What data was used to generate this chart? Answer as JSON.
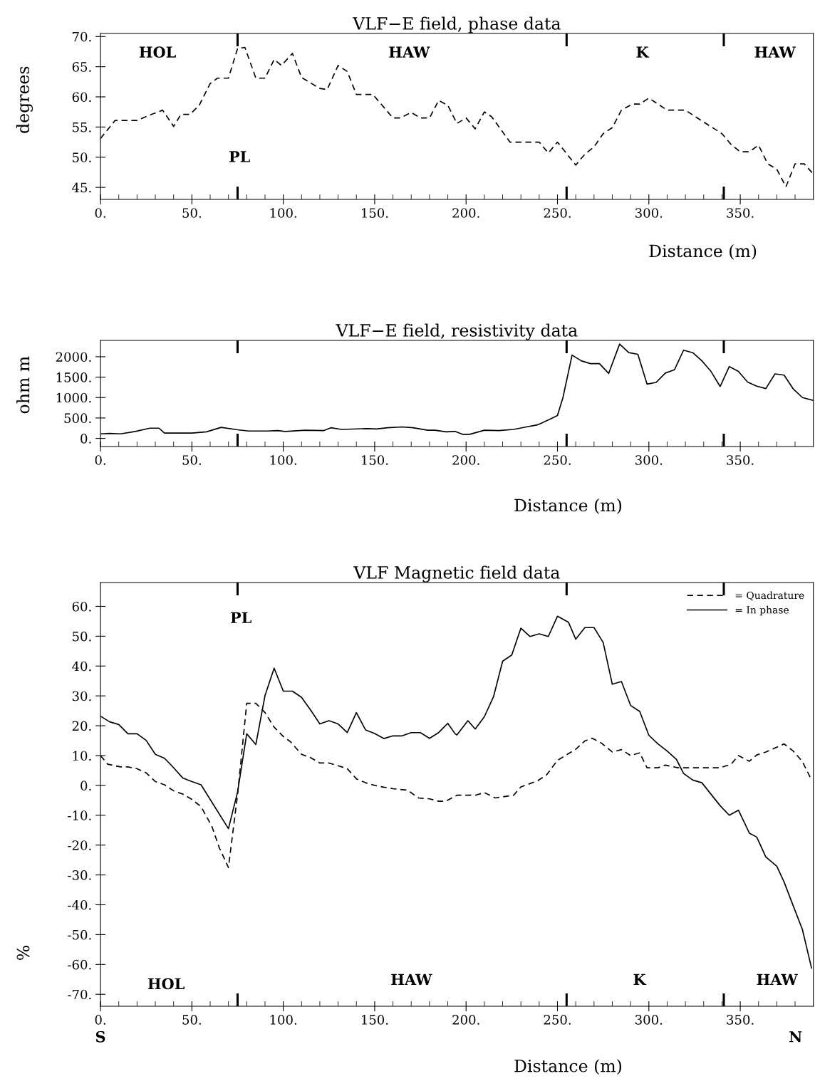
{
  "chart_data": [
    {
      "type": "line",
      "title": "VLF−E field, phase data",
      "xlabel": "Distance (m)",
      "ylabel": "degrees",
      "xlim": [
        0,
        390
      ],
      "ylim": [
        43,
        70.5
      ],
      "xticks": [
        {
          "value": 0,
          "label": "0."
        },
        {
          "value": 10,
          "label": null
        },
        {
          "value": 20,
          "label": null
        },
        {
          "value": 30,
          "label": null
        },
        {
          "value": 40,
          "label": null
        },
        {
          "value": 50,
          "label": "50."
        },
        {
          "value": 60,
          "label": null
        },
        {
          "value": 70,
          "label": null
        },
        {
          "value": 80,
          "label": null
        },
        {
          "value": 90,
          "label": null
        },
        {
          "value": 100,
          "label": "100."
        },
        {
          "value": 110,
          "label": null
        },
        {
          "value": 120,
          "label": null
        },
        {
          "value": 130,
          "label": null
        },
        {
          "value": 140,
          "label": null
        },
        {
          "value": 150,
          "label": "150."
        },
        {
          "value": 160,
          "label": null
        },
        {
          "value": 170,
          "label": null
        },
        {
          "value": 180,
          "label": null
        },
        {
          "value": 190,
          "label": null
        },
        {
          "value": 200,
          "label": "200."
        },
        {
          "value": 210,
          "label": null
        },
        {
          "value": 220,
          "label": null
        },
        {
          "value": 230,
          "label": null
        },
        {
          "value": 240,
          "label": null
        },
        {
          "value": 250,
          "label": "250."
        },
        {
          "value": 260,
          "label": null
        },
        {
          "value": 270,
          "label": null
        },
        {
          "value": 280,
          "label": null
        },
        {
          "value": 290,
          "label": null
        },
        {
          "value": 300,
          "label": "300."
        },
        {
          "value": 310,
          "label": null
        },
        {
          "value": 320,
          "label": null
        },
        {
          "value": 330,
          "label": null
        },
        {
          "value": 340,
          "label": null
        },
        {
          "value": 350,
          "label": "350."
        },
        {
          "value": 360,
          "label": null
        },
        {
          "value": 370,
          "label": null
        },
        {
          "value": 380,
          "label": null
        }
      ],
      "yticks": [
        {
          "value": 45,
          "label": "45."
        },
        {
          "value": 50,
          "label": "50."
        },
        {
          "value": 55,
          "label": "55."
        },
        {
          "value": 60,
          "label": "60."
        },
        {
          "value": 65,
          "label": "65."
        },
        {
          "value": 70,
          "label": "70."
        }
      ],
      "line_style": "dashed",
      "marker": "none",
      "grid": false,
      "legend": false,
      "ref_lines": [
        {
          "axis": "x",
          "value": 75,
          "color": "#000000"
        },
        {
          "axis": "x",
          "value": 255,
          "color": "#000000"
        },
        {
          "axis": "x",
          "value": 341,
          "color": "#000000"
        }
      ],
      "annotations": [
        "HOL",
        "HAW",
        "K",
        "HAW",
        "PL"
      ],
      "series": [
        {
          "color": "#000000",
          "x": [
            0,
            8,
            20,
            28,
            34,
            40,
            44,
            49,
            54,
            60,
            64,
            70,
            75,
            79,
            85,
            90,
            95,
            99,
            105,
            110,
            120,
            124,
            130,
            135,
            140,
            149,
            160,
            164,
            170,
            175,
            180,
            185,
            190,
            195,
            200,
            205,
            210,
            214,
            224,
            240,
            245,
            250,
            260,
            265,
            270,
            275,
            280,
            285,
            291,
            295,
            300,
            305,
            310,
            320,
            326,
            340,
            345,
            350,
            355,
            360,
            365,
            370,
            375,
            380,
            385,
            390
          ],
          "values": [
            53.1,
            56.1,
            56.1,
            57.1,
            57.8,
            55.1,
            57.1,
            57.1,
            58.6,
            62.2,
            63.1,
            63.1,
            68.0,
            68.2,
            63.1,
            63.1,
            66.2,
            65.2,
            67.2,
            63.2,
            61.4,
            61.2,
            65.2,
            64.2,
            60.4,
            60.4,
            56.5,
            56.5,
            57.4,
            56.5,
            56.5,
            59.4,
            58.6,
            55.6,
            56.5,
            54.7,
            57.5,
            56.7,
            52.5,
            52.5,
            50.7,
            52.5,
            48.7,
            50.5,
            51.7,
            53.9,
            54.9,
            57.8,
            58.8,
            58.8,
            59.8,
            58.8,
            57.8,
            57.8,
            56.6,
            53.9,
            52.1,
            50.9,
            50.9,
            52.0,
            48.9,
            48.0,
            45.1,
            48.9,
            48.9,
            47.2
          ]
        }
      ]
    },
    {
      "type": "line",
      "title": "VLF−E field, resistivity data",
      "xlabel": "Distance (m)",
      "ylabel": "ohm m",
      "xlim": [
        0,
        390
      ],
      "ylim": [
        -200,
        2400
      ],
      "xticks": [
        {
          "value": 0,
          "label": "0."
        },
        {
          "value": 10,
          "label": null
        },
        {
          "value": 20,
          "label": null
        },
        {
          "value": 30,
          "label": null
        },
        {
          "value": 40,
          "label": null
        },
        {
          "value": 50,
          "label": "50."
        },
        {
          "value": 60,
          "label": null
        },
        {
          "value": 70,
          "label": null
        },
        {
          "value": 80,
          "label": null
        },
        {
          "value": 90,
          "label": null
        },
        {
          "value": 100,
          "label": "100."
        },
        {
          "value": 110,
          "label": null
        },
        {
          "value": 120,
          "label": null
        },
        {
          "value": 130,
          "label": null
        },
        {
          "value": 140,
          "label": null
        },
        {
          "value": 150,
          "label": "150."
        },
        {
          "value": 160,
          "label": null
        },
        {
          "value": 170,
          "label": null
        },
        {
          "value": 180,
          "label": null
        },
        {
          "value": 190,
          "label": null
        },
        {
          "value": 200,
          "label": "200."
        },
        {
          "value": 210,
          "label": null
        },
        {
          "value": 220,
          "label": null
        },
        {
          "value": 230,
          "label": null
        },
        {
          "value": 240,
          "label": null
        },
        {
          "value": 250,
          "label": "250."
        },
        {
          "value": 260,
          "label": null
        },
        {
          "value": 270,
          "label": null
        },
        {
          "value": 280,
          "label": null
        },
        {
          "value": 290,
          "label": null
        },
        {
          "value": 300,
          "label": "300."
        },
        {
          "value": 310,
          "label": null
        },
        {
          "value": 320,
          "label": null
        },
        {
          "value": 330,
          "label": null
        },
        {
          "value": 340,
          "label": null
        },
        {
          "value": 350,
          "label": "350."
        },
        {
          "value": 360,
          "label": null
        },
        {
          "value": 370,
          "label": null
        },
        {
          "value": 380,
          "label": null
        }
      ],
      "yticks": [
        {
          "value": 0,
          "label": "0."
        },
        {
          "value": 500,
          "label": "500."
        },
        {
          "value": 1000,
          "label": "1000."
        },
        {
          "value": 1500,
          "label": "1500."
        },
        {
          "value": 2000,
          "label": "2000."
        }
      ],
      "line_style": "solid",
      "marker": "none",
      "grid": false,
      "legend": false,
      "ref_lines": [
        {
          "axis": "x",
          "value": 75,
          "color": "#000000"
        },
        {
          "axis": "x",
          "value": 255,
          "color": "#000000"
        },
        {
          "axis": "x",
          "value": 341,
          "color": "#000000"
        }
      ],
      "series": [
        {
          "color": "#000000",
          "x": [
            0,
            5,
            11,
            19,
            27,
            32,
            35,
            50,
            58,
            66,
            75,
            81,
            91,
            97,
            101,
            112,
            122,
            126,
            132,
            146,
            151,
            157,
            165,
            171,
            179,
            183,
            189,
            194,
            198,
            202,
            210,
            218,
            226,
            233,
            239,
            245,
            250,
            253,
            258,
            263,
            268,
            273,
            278,
            284,
            289,
            294,
            299,
            304,
            309,
            314,
            319,
            324,
            329,
            334,
            339,
            344,
            349,
            354,
            359,
            364,
            369,
            374,
            379,
            384,
            390
          ],
          "values": [
            110,
            120,
            110,
            170,
            250,
            250,
            130,
            130,
            160,
            270,
            210,
            180,
            180,
            190,
            170,
            200,
            190,
            260,
            220,
            240,
            230,
            260,
            280,
            260,
            200,
            200,
            160,
            170,
            100,
            100,
            200,
            190,
            220,
            280,
            330,
            450,
            560,
            1000,
            2040,
            1900,
            1830,
            1830,
            1590,
            2310,
            2100,
            2060,
            1330,
            1370,
            1600,
            1680,
            2160,
            2100,
            1900,
            1640,
            1270,
            1760,
            1640,
            1380,
            1280,
            1220,
            1580,
            1550,
            1210,
            1000,
            930
          ]
        }
      ]
    },
    {
      "type": "line",
      "title": "VLF Magnetic field data",
      "xlabel": "Distance (m)",
      "ylabel": "%",
      "xlim": [
        0,
        390
      ],
      "ylim": [
        -74,
        68
      ],
      "xticks": [
        {
          "value": 0,
          "label": "0."
        },
        {
          "value": 10,
          "label": null
        },
        {
          "value": 20,
          "label": null
        },
        {
          "value": 30,
          "label": null
        },
        {
          "value": 40,
          "label": null
        },
        {
          "value": 50,
          "label": "50."
        },
        {
          "value": 60,
          "label": null
        },
        {
          "value": 70,
          "label": null
        },
        {
          "value": 80,
          "label": null
        },
        {
          "value": 90,
          "label": null
        },
        {
          "value": 100,
          "label": "100."
        },
        {
          "value": 110,
          "label": null
        },
        {
          "value": 120,
          "label": null
        },
        {
          "value": 130,
          "label": null
        },
        {
          "value": 140,
          "label": null
        },
        {
          "value": 150,
          "label": "150."
        },
        {
          "value": 160,
          "label": null
        },
        {
          "value": 170,
          "label": null
        },
        {
          "value": 180,
          "label": null
        },
        {
          "value": 190,
          "label": null
        },
        {
          "value": 200,
          "label": "200."
        },
        {
          "value": 210,
          "label": null
        },
        {
          "value": 220,
          "label": null
        },
        {
          "value": 230,
          "label": null
        },
        {
          "value": 240,
          "label": null
        },
        {
          "value": 250,
          "label": "250."
        },
        {
          "value": 260,
          "label": null
        },
        {
          "value": 270,
          "label": null
        },
        {
          "value": 280,
          "label": null
        },
        {
          "value": 290,
          "label": null
        },
        {
          "value": 300,
          "label": "300."
        },
        {
          "value": 310,
          "label": null
        },
        {
          "value": 320,
          "label": null
        },
        {
          "value": 330,
          "label": null
        },
        {
          "value": 340,
          "label": null
        },
        {
          "value": 350,
          "label": "350."
        },
        {
          "value": 360,
          "label": null
        },
        {
          "value": 370,
          "label": null
        },
        {
          "value": 380,
          "label": null
        }
      ],
      "yticks": [
        {
          "value": -70,
          "label": "-70."
        },
        {
          "value": -60,
          "label": "-60."
        },
        {
          "value": -50,
          "label": "-50."
        },
        {
          "value": -40,
          "label": "-40."
        },
        {
          "value": -30,
          "label": "-30."
        },
        {
          "value": -20,
          "label": "-20."
        },
        {
          "value": -10,
          "label": "-10."
        },
        {
          "value": 0,
          "label": "0."
        },
        {
          "value": 10,
          "label": "10."
        },
        {
          "value": 20,
          "label": "20."
        },
        {
          "value": 30,
          "label": "30."
        },
        {
          "value": 40,
          "label": "40."
        },
        {
          "value": 50,
          "label": "50."
        },
        {
          "value": 60,
          "label": "60."
        }
      ],
      "marker": "none",
      "grid": false,
      "legend": "top right",
      "ref_lines": [
        {
          "axis": "x",
          "value": 75,
          "color": "#000000"
        },
        {
          "axis": "x",
          "value": 255,
          "color": "#000000"
        },
        {
          "axis": "x",
          "value": 341,
          "color": "#000000"
        }
      ],
      "annotations": [
        "PL",
        "HOL",
        "HAW",
        "K",
        "HAW",
        "S",
        "N"
      ],
      "series": [
        {
          "name": "= Quadrature",
          "color": "#000000",
          "line_style": "dashed",
          "x": [
            0,
            4,
            11,
            15,
            20,
            25,
            30,
            35,
            40,
            45,
            50,
            55,
            61,
            65,
            70,
            75,
            80,
            85,
            90,
            95,
            100,
            104,
            110,
            115,
            120,
            125,
            130,
            135,
            140,
            145,
            150,
            155,
            160,
            168,
            174,
            180,
            185,
            189,
            194,
            195,
            205,
            210,
            216,
            226,
            230,
            239,
            244,
            250,
            260,
            265,
            269,
            274,
            280,
            285,
            290,
            295,
            299,
            305,
            309,
            316,
            339,
            345,
            349,
            355,
            359,
            364,
            370,
            374,
            379,
            384,
            389
          ],
          "values": [
            10.0,
            7.1,
            6.2,
            6.2,
            5.6,
            4.2,
            1.3,
            0.2,
            -1.8,
            -2.9,
            -4.7,
            -7.1,
            -13.8,
            -20.9,
            -27.5,
            -3.1,
            27.5,
            27.5,
            24.4,
            19.5,
            16.4,
            14.6,
            10.4,
            9.3,
            7.5,
            7.5,
            6.6,
            5.6,
            2.2,
            0.9,
            0.0,
            -0.6,
            -1.1,
            -1.6,
            -4.2,
            -4.5,
            -5.3,
            -5.3,
            -3.6,
            -3.3,
            -3.3,
            -2.4,
            -4.2,
            -3.3,
            -0.5,
            1.5,
            3.5,
            8.4,
            12.1,
            14.9,
            15.8,
            14.2,
            11.2,
            12.0,
            10.0,
            10.9,
            5.9,
            5.9,
            6.8,
            5.9,
            5.9,
            7.1,
            10.0,
            8.1,
            10.2,
            11.2,
            12.8,
            13.9,
            11.5,
            8.0,
            1.8
          ]
        },
        {
          "name": "= In phase",
          "color": "#000000",
          "line_style": "solid",
          "x": [
            0,
            5,
            10,
            15,
            20,
            25,
            30,
            35,
            39,
            45,
            50,
            55,
            70,
            75,
            80,
            85,
            90,
            95,
            100,
            105,
            110,
            115,
            120,
            125,
            130,
            135,
            140,
            145,
            150,
            155,
            160,
            165,
            170,
            175,
            180,
            185,
            190,
            194,
            195,
            201,
            205,
            210,
            215,
            220,
            225,
            230,
            235,
            240,
            245,
            250,
            256,
            260,
            265,
            270,
            275,
            280,
            285,
            290,
            295,
            300,
            305,
            310,
            315,
            319,
            324,
            329,
            339,
            344,
            349,
            355,
            359,
            364,
            370,
            374,
            379,
            384,
            389
          ],
          "values": [
            23.2,
            21.3,
            20.4,
            17.3,
            17.3,
            15.1,
            10.4,
            9.1,
            6.6,
            2.5,
            1.3,
            0.2,
            -14.5,
            -2.2,
            17.3,
            13.7,
            30.1,
            39.3,
            31.6,
            31.6,
            29.5,
            25.2,
            20.6,
            21.7,
            20.6,
            17.7,
            24.4,
            18.6,
            17.4,
            15.7,
            16.6,
            16.6,
            17.7,
            17.7,
            15.8,
            17.7,
            20.8,
            17.3,
            16.9,
            21.7,
            18.9,
            23.0,
            29.7,
            41.6,
            43.7,
            52.7,
            49.9,
            50.8,
            49.9,
            56.7,
            54.7,
            49.0,
            52.9,
            52.9,
            47.9,
            33.9,
            34.8,
            26.8,
            24.8,
            16.8,
            13.9,
            11.5,
            8.8,
            4.0,
            1.8,
            0.9,
            -6.8,
            -10.0,
            -8.3,
            -16.0,
            -17.3,
            -24.0,
            -27.1,
            -32.4,
            -40.4,
            -48.3,
            -61.2
          ]
        }
      ]
    }
  ]
}
